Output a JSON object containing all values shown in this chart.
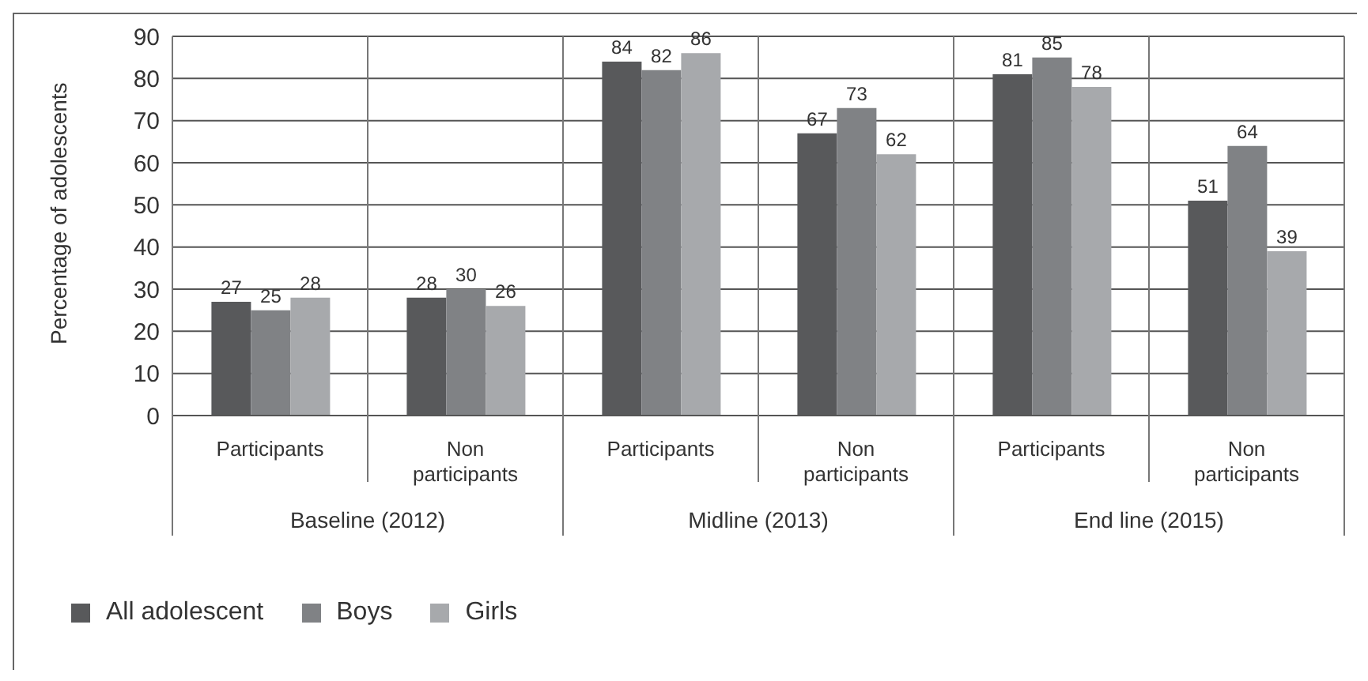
{
  "chart_data": {
    "type": "bar",
    "ylabel": "Percentage of adolescents",
    "categories": [
      "Participants",
      "Non participants",
      "Participants",
      "Non participants",
      "Participants",
      "Non participants"
    ],
    "annotations": [
      "Baseline (2012)",
      "Midline (2013)",
      "End line (2015)"
    ],
    "series": [
      {
        "name": "All adolescent",
        "color": "#58595b",
        "values": [
          27,
          28,
          84,
          67,
          81,
          51
        ]
      },
      {
        "name": "Boys",
        "color": "#808285",
        "values": [
          25,
          30,
          82,
          73,
          85,
          64
        ]
      },
      {
        "name": "Girls",
        "color": "#a7a9ac",
        "values": [
          28,
          26,
          86,
          62,
          78,
          39
        ]
      }
    ],
    "ylim": [
      0,
      90
    ],
    "yticks": [
      0,
      10,
      20,
      30,
      40,
      50,
      60,
      70,
      80,
      90
    ],
    "grid": true,
    "legend": "bottom left",
    "data_labels": true
  }
}
